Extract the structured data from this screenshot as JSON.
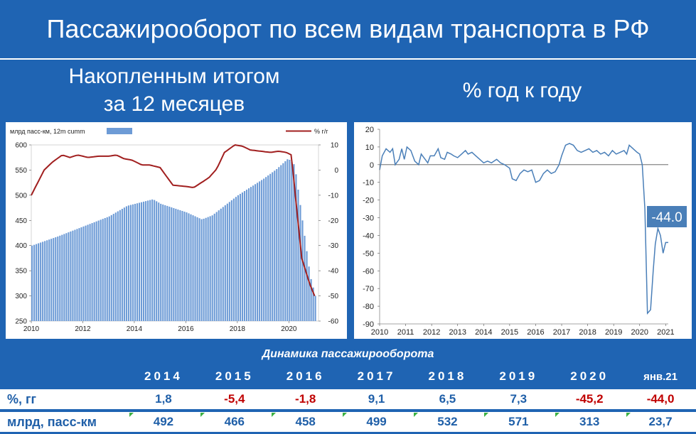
{
  "title": "Пассажирооборот по всем видам транспорта в РФ",
  "left_subtitle": [
    "Накопленным итогом",
    "за 12 месяцев"
  ],
  "right_subtitle": "% год к году",
  "chart_data": [
    {
      "type": "bar+line",
      "legend": {
        "bars": "млрд пасс-км, 12m cumm",
        "line": "% г/г"
      },
      "x_ticks": [
        "2010",
        "2012",
        "2014",
        "2016",
        "2018",
        "2020"
      ],
      "y_left_ticks": [
        "600",
        "550",
        "500",
        "450",
        "400",
        "350",
        "300",
        "250"
      ],
      "y_left_lim": [
        250,
        600
      ],
      "y_right_ticks": [
        "10",
        "0",
        "-10",
        "-20",
        "-30",
        "-40",
        "-50",
        "-60"
      ],
      "y_right_lim": [
        -60,
        10
      ],
      "bar_anchors": {
        "x": [
          2010.0,
          2011.0,
          2012.0,
          2013.0,
          2013.7,
          2014.7,
          2015.0,
          2016.0,
          2016.6,
          2017.0,
          2018.0,
          2019.0,
          2019.5,
          2019.95,
          2020.2,
          2020.5,
          2020.8,
          2021.0
        ],
        "values": [
          400,
          418,
          438,
          458,
          479,
          492,
          483,
          466,
          452,
          460,
          500,
          533,
          552,
          573,
          560,
          450,
          340,
          300
        ]
      },
      "line_anchors": {
        "x": [
          2010.0,
          2010.15,
          2010.5,
          2010.8,
          2011.2,
          2011.5,
          2011.8,
          2012.2,
          2012.6,
          2013.0,
          2013.3,
          2013.6,
          2013.9,
          2014.3,
          2014.6,
          2015.0,
          2015.5,
          2016.0,
          2016.3,
          2016.6,
          2016.9,
          2017.2,
          2017.5,
          2017.9,
          2018.2,
          2018.5,
          2018.9,
          2019.3,
          2019.6,
          2019.9,
          2020.1,
          2020.25,
          2020.5,
          2020.8,
          2021.0
        ],
        "values": [
          -10,
          -7,
          0,
          3,
          6,
          5,
          6,
          5,
          5.5,
          5.5,
          6,
          4.5,
          4,
          2,
          2,
          1,
          -6,
          -6.5,
          -7,
          -5,
          -3,
          0.5,
          7,
          10,
          9.5,
          8,
          7.5,
          7,
          7.5,
          7,
          6,
          -10,
          -35,
          -45,
          -50
        ]
      }
    },
    {
      "type": "line",
      "x_ticks": [
        "2010",
        "2011",
        "2012",
        "2013",
        "2014",
        "2015",
        "2016",
        "2017",
        "2018",
        "2019",
        "2020",
        "2021"
      ],
      "y_ticks": [
        "20",
        "10",
        "0",
        "-10",
        "-20",
        "-30",
        "-40",
        "-50",
        "-60",
        "-70",
        "-80",
        "-90"
      ],
      "ylim": [
        -90,
        20
      ],
      "annotation": "-44.0",
      "series_anchors": {
        "x": [
          2010.0,
          2010.1,
          2010.25,
          2010.4,
          2010.5,
          2010.6,
          2010.75,
          2010.85,
          2010.95,
          2011.05,
          2011.2,
          2011.35,
          2011.5,
          2011.6,
          2011.75,
          2011.85,
          2011.95,
          2012.1,
          2012.25,
          2012.35,
          2012.5,
          2012.6,
          2012.75,
          2012.85,
          2013.0,
          2013.15,
          2013.3,
          2013.4,
          2013.55,
          2013.7,
          2013.85,
          2014.0,
          2014.15,
          2014.3,
          2014.5,
          2014.65,
          2014.8,
          2015.0,
          2015.1,
          2015.25,
          2015.4,
          2015.55,
          2015.7,
          2015.85,
          2016.0,
          2016.15,
          2016.3,
          2016.45,
          2016.6,
          2016.75,
          2016.9,
          2017.0,
          2017.15,
          2017.3,
          2017.45,
          2017.6,
          2017.75,
          2017.9,
          2018.05,
          2018.2,
          2018.35,
          2018.5,
          2018.65,
          2018.8,
          2018.95,
          2019.1,
          2019.25,
          2019.4,
          2019.5,
          2019.6,
          2019.75,
          2019.9,
          2020.0,
          2020.1,
          2020.2,
          2020.3,
          2020.42,
          2020.52,
          2020.6,
          2020.7,
          2020.8,
          2020.9,
          2021.0,
          2021.1
        ],
        "values": [
          -3,
          5,
          9,
          7,
          9,
          0,
          3,
          9,
          3,
          10,
          8,
          2,
          0,
          6,
          3,
          1,
          5,
          5,
          9,
          4,
          3,
          7,
          6,
          5,
          4,
          6,
          8,
          6,
          7,
          5,
          3,
          1,
          2,
          1,
          3,
          1,
          0,
          -2,
          -8,
          -9,
          -5,
          -3,
          -4,
          -3,
          -10,
          -9,
          -5,
          -3,
          -5,
          -4,
          0,
          5,
          11,
          12,
          11,
          8,
          7,
          8,
          9,
          7,
          8,
          6,
          7,
          5,
          8,
          6,
          7,
          8,
          6,
          11,
          9,
          7,
          6,
          0,
          -25,
          -84,
          -82,
          -60,
          -45,
          -36,
          -40,
          -50,
          -44,
          -44
        ]
      }
    }
  ],
  "table": {
    "title": "Динамика пассажирооборота",
    "years": [
      "2014",
      "2015",
      "2016",
      "2017",
      "2018",
      "2019",
      "2020",
      "янв.21"
    ],
    "pct_label": "%, гг",
    "pct": [
      "1,8",
      "-5,4",
      "-1,8",
      "9,1",
      "6,5",
      "7,3",
      "-45,2",
      "-44,0"
    ],
    "pct_sign": [
      "pos",
      "neg",
      "neg",
      "pos",
      "pos",
      "pos",
      "neg",
      "neg"
    ],
    "bn_label": "млрд, пасс-км",
    "bn": [
      "492",
      "466",
      "458",
      "499",
      "532",
      "571",
      "313",
      "23,7"
    ]
  },
  "colors": {
    "background": "#1f64b3",
    "bars": "#6d9bd6",
    "line_red": "#a11f1f",
    "line_blue": "#4a7fb8",
    "negative": "#c00000",
    "positive": "#1f5fa8"
  }
}
